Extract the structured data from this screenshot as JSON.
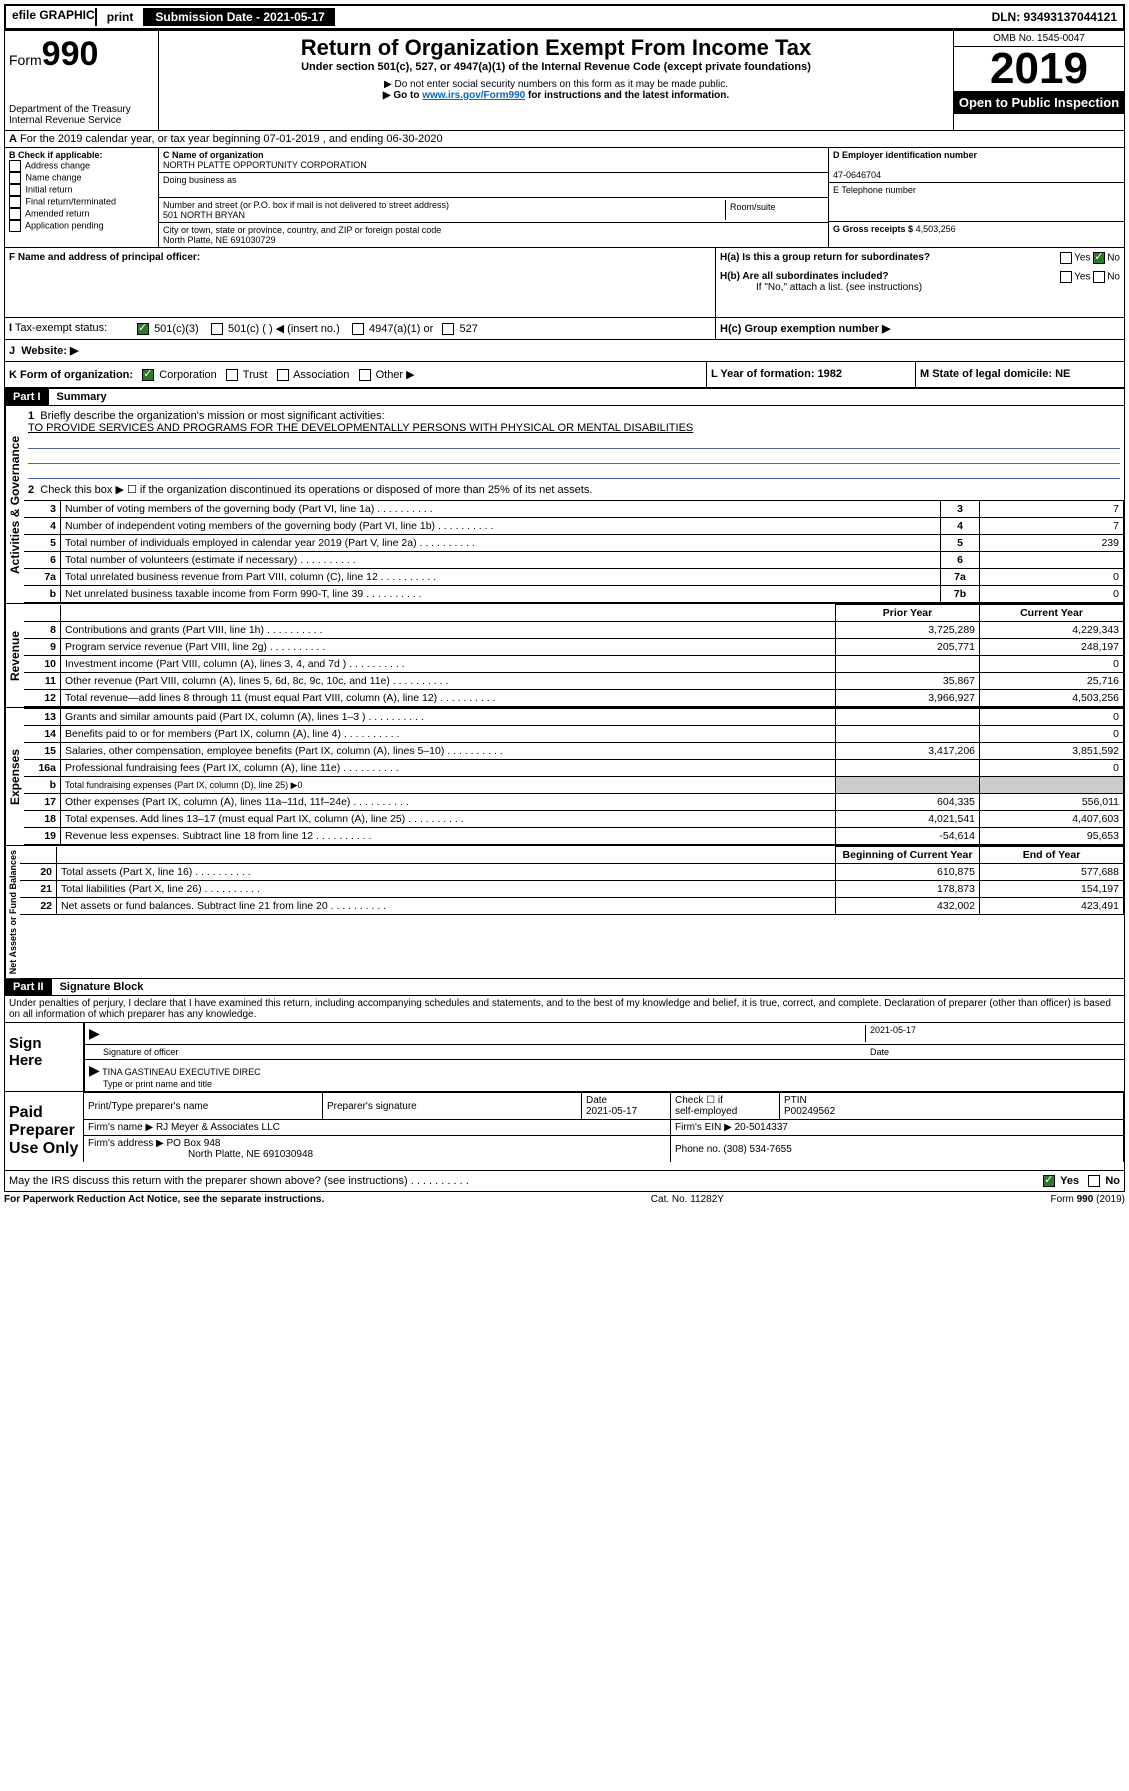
{
  "topbar": {
    "efile": "efile GRAPHIC",
    "print": "print",
    "submission": "Submission Date - 2021-05-17",
    "dln": "DLN: 93493137044121"
  },
  "header": {
    "form_prefix": "Form",
    "form_num": "990",
    "dept": "Department of the Treasury\nInternal Revenue Service",
    "title": "Return of Organization Exempt From Income Tax",
    "sub1": "Under section 501(c), 527, or 4947(a)(1) of the Internal Revenue Code (except private foundations)",
    "sub2": "▶ Do not enter social security numbers on this form as it may be made public.",
    "sub3_pre": "▶ Go to ",
    "sub3_link": "www.irs.gov/Form990",
    "sub3_post": " for instructions and the latest information.",
    "omb": "OMB No. 1545-0047",
    "year": "2019",
    "open": "Open to Public Inspection"
  },
  "line_a": "For the 2019 calendar year, or tax year beginning 07-01-2019     , and ending 06-30-2020",
  "box_b": {
    "title": "B Check if applicable:",
    "opts": [
      "Address change",
      "Name change",
      "Initial return",
      "Final return/terminated",
      "Amended return",
      "Application pending"
    ]
  },
  "box_c": {
    "label_name": "C Name of organization",
    "name": "NORTH PLATTE OPPORTUNITY CORPORATION",
    "dba_label": "Doing business as",
    "addr_label": "Number and street (or P.O. box if mail is not delivered to street address)",
    "room_label": "Room/suite",
    "addr": "501 NORTH BRYAN",
    "city_label": "City or town, state or province, country, and ZIP or foreign postal code",
    "city": "North Platte, NE  691030729"
  },
  "box_d": {
    "label": "D Employer identification number",
    "val": "47-0646704"
  },
  "box_e": {
    "label": "E Telephone number"
  },
  "box_g": {
    "label": "G Gross receipts $",
    "val": "4,503,256"
  },
  "box_f": "F  Name and address of principal officer:",
  "box_h": {
    "a": "H(a)  Is this a group return for subordinates?",
    "b": "H(b)  Are all subordinates included?",
    "b_note": "If \"No,\" attach a list. (see instructions)",
    "c": "H(c)  Group exemption number ▶"
  },
  "line_i": {
    "label": "Tax-exempt status:",
    "o1": "501(c)(3)",
    "o2": "501(c) (  ) ◀ (insert no.)",
    "o3": "4947(a)(1) or",
    "o4": "527"
  },
  "line_j": "Website: ▶",
  "line_k": {
    "label": "K Form of organization:",
    "opts": [
      "Corporation",
      "Trust",
      "Association",
      "Other ▶"
    ],
    "l": "L Year of formation: 1982",
    "m": "M State of legal domicile: NE"
  },
  "part1": {
    "header": "Part I",
    "title": "Summary",
    "q1": "Briefly describe the organization's mission or most significant activities:",
    "mission": "TO PROVIDE SERVICES AND PROGRAMS FOR THE DEVELOPMENTALLY PERSONS WITH PHYSICAL OR MENTAL DISABILITIES",
    "q2": "Check this box ▶ ☐  if the organization discontinued its operations or disposed of more than 25% of its net assets.",
    "rows_gov": [
      {
        "n": "3",
        "t": "Number of voting members of the governing body (Part VI, line 1a)",
        "b": "3",
        "v": "7"
      },
      {
        "n": "4",
        "t": "Number of independent voting members of the governing body (Part VI, line 1b)",
        "b": "4",
        "v": "7"
      },
      {
        "n": "5",
        "t": "Total number of individuals employed in calendar year 2019 (Part V, line 2a)",
        "b": "5",
        "v": "239"
      },
      {
        "n": "6",
        "t": "Total number of volunteers (estimate if necessary)",
        "b": "6",
        "v": ""
      },
      {
        "n": "7a",
        "t": "Total unrelated business revenue from Part VIII, column (C), line 12",
        "b": "7a",
        "v": "0"
      },
      {
        "n": "b",
        "t": "Net unrelated business taxable income from Form 990-T, line 39",
        "b": "7b",
        "v": "0"
      }
    ],
    "hdr_prior": "Prior Year",
    "hdr_curr": "Current Year",
    "rows_rev": [
      {
        "n": "8",
        "t": "Contributions and grants (Part VIII, line 1h)",
        "p": "3,725,289",
        "c": "4,229,343"
      },
      {
        "n": "9",
        "t": "Program service revenue (Part VIII, line 2g)",
        "p": "205,771",
        "c": "248,197"
      },
      {
        "n": "10",
        "t": "Investment income (Part VIII, column (A), lines 3, 4, and 7d )",
        "p": "",
        "c": "0"
      },
      {
        "n": "11",
        "t": "Other revenue (Part VIII, column (A), lines 5, 6d, 8c, 9c, 10c, and 11e)",
        "p": "35,867",
        "c": "25,716"
      },
      {
        "n": "12",
        "t": "Total revenue—add lines 8 through 11 (must equal Part VIII, column (A), line 12)",
        "p": "3,966,927",
        "c": "4,503,256"
      }
    ],
    "rows_exp": [
      {
        "n": "13",
        "t": "Grants and similar amounts paid (Part IX, column (A), lines 1–3 )",
        "p": "",
        "c": "0"
      },
      {
        "n": "14",
        "t": "Benefits paid to or for members (Part IX, column (A), line 4)",
        "p": "",
        "c": "0"
      },
      {
        "n": "15",
        "t": "Salaries, other compensation, employee benefits (Part IX, column (A), lines 5–10)",
        "p": "3,417,206",
        "c": "3,851,592"
      },
      {
        "n": "16a",
        "t": "Professional fundraising fees (Part IX, column (A), line 11e)",
        "p": "",
        "c": "0"
      },
      {
        "n": "b",
        "t": "Total fundraising expenses (Part IX, column (D), line 25) ▶0",
        "p": null,
        "c": null
      },
      {
        "n": "17",
        "t": "Other expenses (Part IX, column (A), lines 11a–11d, 11f–24e)",
        "p": "604,335",
        "c": "556,011"
      },
      {
        "n": "18",
        "t": "Total expenses. Add lines 13–17 (must equal Part IX, column (A), line 25)",
        "p": "4,021,541",
        "c": "4,407,603"
      },
      {
        "n": "19",
        "t": "Revenue less expenses. Subtract line 18 from line 12",
        "p": "-54,614",
        "c": "95,653"
      }
    ],
    "hdr_beg": "Beginning of Current Year",
    "hdr_end": "End of Year",
    "rows_net": [
      {
        "n": "20",
        "t": "Total assets (Part X, line 16)",
        "p": "610,875",
        "c": "577,688"
      },
      {
        "n": "21",
        "t": "Total liabilities (Part X, line 26)",
        "p": "178,873",
        "c": "154,197"
      },
      {
        "n": "22",
        "t": "Net assets or fund balances. Subtract line 21 from line 20",
        "p": "432,002",
        "c": "423,491"
      }
    ],
    "vlabels": {
      "gov": "Activities & Governance",
      "rev": "Revenue",
      "exp": "Expenses",
      "net": "Net Assets or Fund Balances"
    }
  },
  "part2": {
    "header": "Part II",
    "title": "Signature Block",
    "perjury": "Under penalties of perjury, I declare that I have examined this return, including accompanying schedules and statements, and to the best of my knowledge and belief, it is true, correct, and complete. Declaration of preparer (other than officer) is based on all information of which preparer has any knowledge.",
    "sign_here": "Sign Here",
    "date": "2021-05-17",
    "sig_officer": "Signature of officer",
    "date_lbl": "Date",
    "officer_name": "TINA GASTINEAU  EXECUTIVE DIREC",
    "type_name": "Type or print name and title",
    "paid": "Paid Preparer Use Only",
    "prep": {
      "h1": "Print/Type preparer's name",
      "h2": "Preparer's signature",
      "h3": "Date",
      "d3": "2021-05-17",
      "h4_a": "Check ☐ if",
      "h4_b": "self-employed",
      "h5": "PTIN",
      "d5": "P00249562",
      "firm_name_lbl": "Firm's name      ▶",
      "firm_name": "RJ Meyer & Associates LLC",
      "firm_ein_lbl": "Firm's EIN ▶",
      "firm_ein": "20-5014337",
      "firm_addr_lbl": "Firm's address ▶",
      "firm_addr1": "PO Box 948",
      "firm_addr2": "North Platte, NE  691030948",
      "phone_lbl": "Phone no.",
      "phone": "(308) 534-7655"
    },
    "discuss": "May the IRS discuss this return with the preparer shown above? (see instructions)",
    "yes": "Yes",
    "no": "No"
  },
  "footer": {
    "left": "For Paperwork Reduction Act Notice, see the separate instructions.",
    "mid": "Cat. No. 11282Y",
    "right": "Form 990 (2019)"
  }
}
